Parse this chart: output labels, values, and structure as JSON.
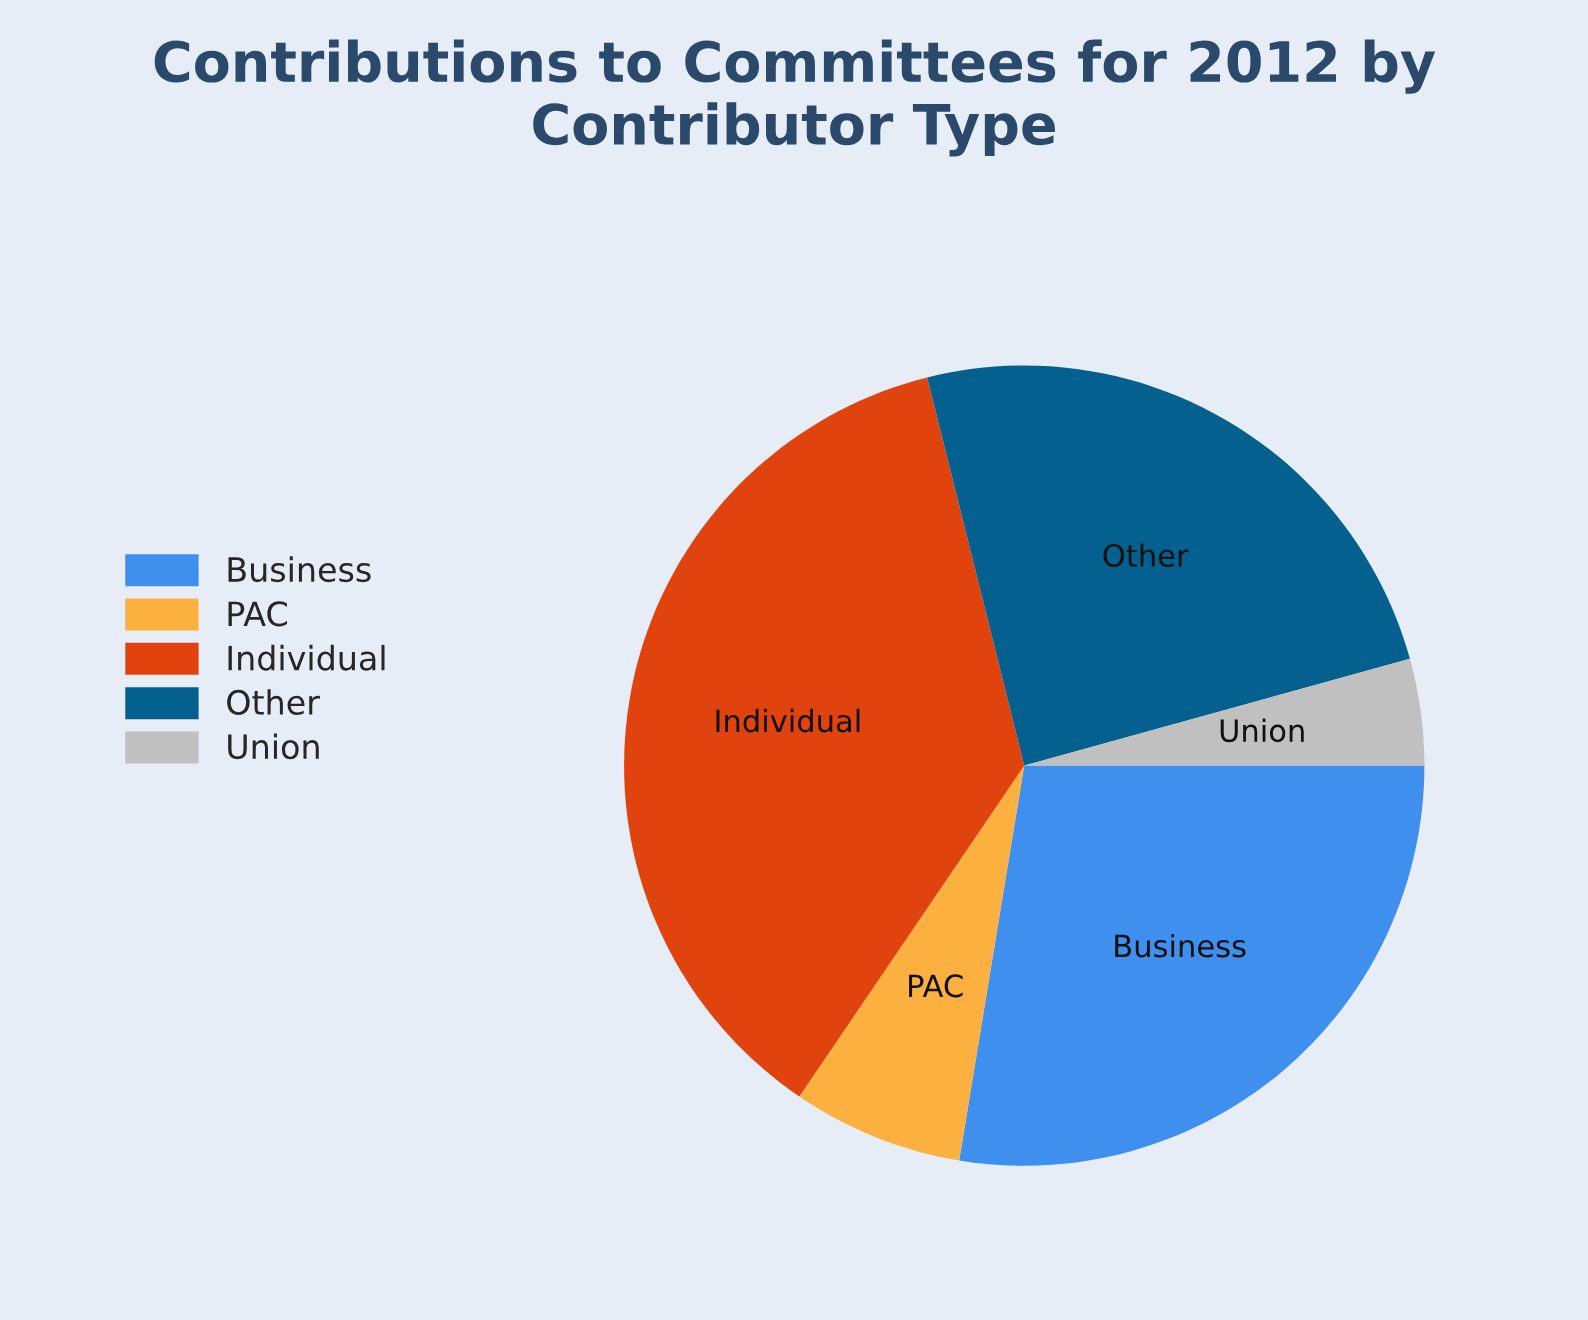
{
  "chart_data": {
    "type": "pie",
    "title": "Contributions to Committees for 2012 by Contributor Type",
    "categories": [
      "Business",
      "PAC",
      "Individual",
      "Other",
      "Union"
    ],
    "values": [
      27.6,
      6.9,
      36.6,
      24.6,
      4.3
    ],
    "colors": [
      "#3f8fef",
      "#fbb040",
      "#e0430e",
      "#04608f",
      "#c0c0c0"
    ],
    "legend": "left"
  }
}
